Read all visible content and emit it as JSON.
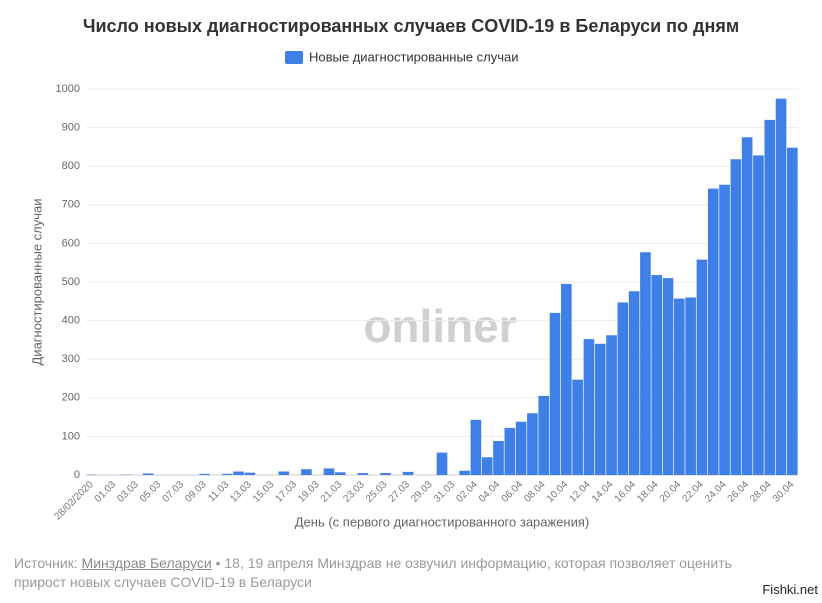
{
  "chart_data": {
    "type": "bar",
    "title": "Число новых диагностированных случаев COVID-19 в Беларуси по дням",
    "y_label": "Диагностированные случаи",
    "x_label": "День (с первого диагностированного заражения)",
    "watermark": "onliner",
    "categories": [
      "28/02/2020",
      null,
      "01.03",
      null,
      "03.03",
      null,
      "05.03",
      null,
      "07.03",
      null,
      "09.03",
      null,
      "11.03",
      null,
      "13.03",
      null,
      "15.03",
      null,
      "17.03",
      null,
      "19.03",
      null,
      "21.03",
      null,
      "23.03",
      null,
      "25.03",
      null,
      "27.03",
      null,
      "29.03",
      null,
      "31.03",
      null,
      "02.04",
      null,
      "04.04",
      null,
      "06.04",
      null,
      "08.04",
      null,
      "10.04",
      null,
      "12.04",
      null,
      "14.04",
      null,
      "16.04",
      null,
      "18.04",
      null,
      "20.04",
      null,
      "22.04",
      null,
      "24.04",
      null,
      "26.04",
      null,
      "28.04",
      null,
      "30.04"
    ],
    "series": [
      {
        "name": "Новые диагностированные случаи",
        "color": "#3f7fe8",
        "values": [
          1,
          0,
          0,
          1,
          0,
          4,
          0,
          0,
          0,
          0,
          3,
          0,
          3,
          9,
          6,
          0,
          0,
          9,
          0,
          15,
          0,
          17,
          7,
          0,
          5,
          0,
          5,
          0,
          8,
          0,
          0,
          58,
          0,
          11,
          143,
          46,
          88,
          122,
          138,
          160,
          205,
          420,
          495,
          247,
          352,
          340,
          362,
          447,
          476,
          577,
          518,
          510,
          457,
          460,
          558,
          742,
          752,
          818,
          875,
          828,
          920,
          975,
          848
        ]
      }
    ],
    "ylim": [
      0,
      1000
    ],
    "yticks": [
      0,
      100,
      200,
      300,
      400,
      500,
      600,
      700,
      800,
      900,
      1000
    ],
    "grid": true,
    "legend": "top"
  },
  "source": {
    "prefix": "Источник:",
    "link": "Минздрав Беларуси",
    "text": "• 18, 19 апреля Минздрав не озвучил информацию, которая позволяет оценить прирост новых случаев COVID-19 в Беларуси"
  },
  "footer": "Fishki.net"
}
